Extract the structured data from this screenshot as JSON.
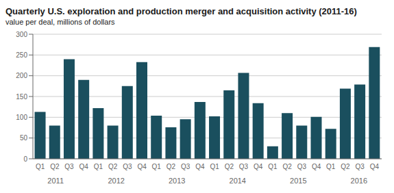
{
  "chart_data": {
    "type": "bar",
    "title": "Quarterly U.S. exploration and production merger and acquisition activity (2011-16)",
    "subtitle": "value per deal, millions of dollars",
    "categories": [
      "Q1",
      "Q2",
      "Q3",
      "Q4",
      "Q1",
      "Q2",
      "Q3",
      "Q4",
      "Q1",
      "Q2",
      "Q3",
      "Q4",
      "Q1",
      "Q2",
      "Q3",
      "Q4",
      "Q1",
      "Q2",
      "Q3",
      "Q4",
      "Q1",
      "Q2",
      "Q3",
      "Q4"
    ],
    "values": [
      113,
      80,
      240,
      190,
      122,
      80,
      175,
      233,
      104,
      76,
      95,
      137,
      102,
      165,
      207,
      134,
      30,
      110,
      80,
      101,
      72,
      169,
      179,
      269
    ],
    "annotations": [
      "2011",
      "2012",
      "2013",
      "2014",
      "2015",
      "2016"
    ],
    "color": "#1a4f5e",
    "ylim": [
      0,
      300
    ],
    "yticks": [
      0,
      50,
      100,
      150,
      200,
      250,
      300
    ],
    "grid": true
  }
}
